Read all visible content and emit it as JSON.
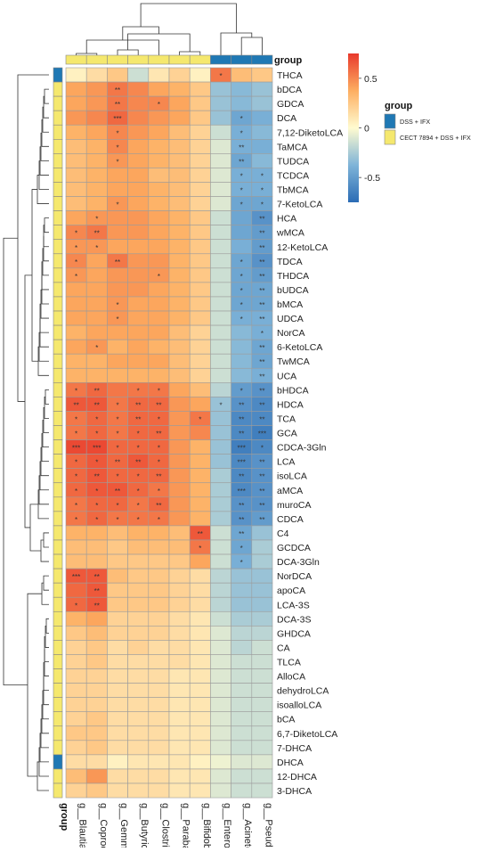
{
  "chart_data": {
    "type": "heatmap",
    "title": "",
    "columns": [
      "g__Blautia",
      "g__Coprococcus",
      "g__Gemmiger",
      "g__Butyricicoccus",
      "g__Clostridium",
      "g__Parabacteroides",
      "g__Bifidobacterium",
      "g__Enterococcus",
      "g__Acinetobacter",
      "g__Pseudomonas"
    ],
    "rows": [
      "THCA",
      "bDCA",
      "GDCA",
      "DCA",
      "7,12-DiketoLCA",
      "TaMCA",
      "TUDCA",
      "TCDCA",
      "TbMCA",
      "7-KetoLCA",
      "HCA",
      "wMCA",
      "12-KetoLCA",
      "TDCA",
      "THDCA",
      "bUDCA",
      "bMCA",
      "UDCA",
      "NorCA",
      "6-KetoLCA",
      "TwMCA",
      "UCA",
      "bHDCA",
      "HDCA",
      "TCA",
      "GCA",
      "CDCA-3Gln",
      "LCA",
      "isoLCA",
      "aMCA",
      "muroCA",
      "CDCA",
      "C4",
      "GCDCA",
      "DCA-3Gln",
      "NorDCA",
      "apoCA",
      "LCA-3S",
      "DCA-3S",
      "GHDCA",
      "CA",
      "TLCA",
      "AlloCA",
      "dehydroLCA",
      "isoalloLCA",
      "bCA",
      "6,7-DiketoLCA",
      "7-DHCA",
      "DHCA",
      "12-DHCA",
      "3-DHCA"
    ],
    "values": [
      [
        0.05,
        0.15,
        0.25,
        -0.15,
        0.1,
        0.2,
        0.05,
        0.55,
        0.3,
        0.25
      ],
      [
        0.4,
        0.45,
        0.55,
        0.5,
        0.4,
        0.35,
        0.25,
        -0.3,
        -0.35,
        -0.3
      ],
      [
        0.4,
        0.45,
        0.55,
        0.5,
        0.5,
        0.4,
        0.25,
        -0.3,
        -0.35,
        -0.3
      ],
      [
        0.45,
        0.5,
        0.6,
        0.5,
        0.45,
        0.4,
        0.25,
        -0.3,
        -0.45,
        -0.4
      ],
      [
        0.35,
        0.4,
        0.5,
        0.45,
        0.4,
        0.3,
        0.2,
        -0.15,
        -0.4,
        -0.35
      ],
      [
        0.3,
        0.35,
        0.5,
        0.4,
        0.35,
        0.3,
        0.2,
        -0.1,
        -0.4,
        -0.4
      ],
      [
        0.3,
        0.35,
        0.45,
        0.4,
        0.35,
        0.3,
        0.2,
        -0.1,
        -0.45,
        -0.35
      ],
      [
        0.3,
        0.35,
        0.4,
        0.4,
        0.3,
        0.3,
        0.2,
        -0.1,
        -0.4,
        -0.4
      ],
      [
        0.3,
        0.35,
        0.4,
        0.4,
        0.35,
        0.3,
        0.2,
        -0.1,
        -0.4,
        -0.4
      ],
      [
        0.3,
        0.35,
        0.45,
        0.4,
        0.35,
        0.3,
        0.2,
        -0.1,
        -0.45,
        -0.45
      ],
      [
        0.4,
        0.45,
        0.45,
        0.45,
        0.4,
        0.35,
        0.25,
        -0.15,
        -0.45,
        -0.55
      ],
      [
        0.5,
        0.55,
        0.45,
        0.45,
        0.4,
        0.35,
        0.25,
        -0.15,
        -0.45,
        -0.5
      ],
      [
        0.45,
        0.45,
        0.4,
        0.4,
        0.4,
        0.35,
        0.25,
        -0.15,
        -0.4,
        -0.5
      ],
      [
        0.5,
        0.4,
        0.55,
        0.45,
        0.45,
        0.35,
        0.25,
        -0.15,
        -0.45,
        -0.55
      ],
      [
        0.45,
        0.4,
        0.45,
        0.45,
        0.45,
        0.35,
        0.25,
        -0.15,
        -0.45,
        -0.5
      ],
      [
        0.4,
        0.4,
        0.45,
        0.45,
        0.4,
        0.35,
        0.25,
        -0.15,
        -0.45,
        -0.45
      ],
      [
        0.4,
        0.4,
        0.45,
        0.4,
        0.4,
        0.35,
        0.25,
        -0.15,
        -0.45,
        -0.45
      ],
      [
        0.4,
        0.4,
        0.45,
        0.4,
        0.4,
        0.35,
        0.25,
        -0.15,
        -0.4,
        -0.4
      ],
      [
        0.35,
        0.4,
        0.4,
        0.4,
        0.4,
        0.3,
        0.2,
        -0.15,
        -0.35,
        -0.4
      ],
      [
        0.4,
        0.45,
        0.35,
        0.4,
        0.35,
        0.3,
        0.2,
        -0.15,
        -0.35,
        -0.45
      ],
      [
        0.35,
        0.35,
        0.4,
        0.4,
        0.4,
        0.3,
        0.2,
        -0.15,
        -0.35,
        -0.45
      ],
      [
        0.35,
        0.35,
        0.35,
        0.35,
        0.35,
        0.3,
        0.2,
        -0.15,
        -0.35,
        -0.4
      ],
      [
        0.55,
        0.6,
        0.55,
        0.55,
        0.55,
        0.4,
        0.3,
        -0.2,
        -0.5,
        -0.55
      ],
      [
        0.65,
        0.65,
        0.55,
        0.6,
        0.6,
        0.45,
        0.4,
        -0.3,
        -0.55,
        -0.6
      ],
      [
        0.55,
        0.6,
        0.55,
        0.6,
        0.6,
        0.45,
        0.55,
        -0.3,
        -0.6,
        -0.6
      ],
      [
        0.55,
        0.6,
        0.55,
        0.6,
        0.6,
        0.45,
        0.5,
        -0.3,
        -0.6,
        -0.65
      ],
      [
        0.7,
        0.7,
        0.6,
        0.6,
        0.6,
        0.45,
        0.35,
        -0.3,
        -0.65,
        -0.6
      ],
      [
        0.6,
        0.65,
        0.6,
        0.65,
        0.6,
        0.45,
        0.35,
        -0.3,
        -0.6,
        -0.55
      ],
      [
        0.6,
        0.65,
        0.6,
        0.6,
        0.6,
        0.45,
        0.35,
        -0.25,
        -0.6,
        -0.55
      ],
      [
        0.6,
        0.65,
        0.65,
        0.6,
        0.55,
        0.45,
        0.35,
        -0.25,
        -0.6,
        -0.55
      ],
      [
        0.55,
        0.6,
        0.6,
        0.55,
        0.6,
        0.45,
        0.35,
        -0.25,
        -0.55,
        -0.55
      ],
      [
        0.55,
        0.6,
        0.55,
        0.55,
        0.55,
        0.45,
        0.35,
        -0.25,
        -0.55,
        -0.5
      ],
      [
        0.35,
        0.35,
        0.3,
        0.35,
        0.35,
        0.3,
        0.65,
        -0.15,
        -0.45,
        -0.3
      ],
      [
        0.3,
        0.3,
        0.25,
        0.3,
        0.3,
        0.3,
        0.55,
        -0.15,
        -0.45,
        -0.25
      ],
      [
        0.3,
        0.3,
        0.25,
        0.25,
        0.25,
        0.25,
        0.4,
        -0.15,
        -0.4,
        -0.25
      ],
      [
        0.65,
        0.65,
        0.3,
        0.25,
        0.25,
        0.2,
        0.15,
        -0.2,
        -0.3,
        -0.3
      ],
      [
        0.6,
        0.65,
        0.25,
        0.25,
        0.25,
        0.2,
        0.15,
        -0.2,
        -0.3,
        -0.3
      ],
      [
        0.6,
        0.65,
        0.25,
        0.25,
        0.25,
        0.2,
        0.15,
        -0.2,
        -0.3,
        -0.3
      ],
      [
        0.35,
        0.4,
        0.2,
        0.2,
        0.2,
        0.15,
        0.1,
        -0.15,
        -0.25,
        -0.25
      ],
      [
        0.25,
        0.3,
        0.2,
        0.2,
        0.2,
        0.15,
        0.1,
        -0.1,
        -0.2,
        -0.2
      ],
      [
        0.2,
        0.25,
        0.15,
        0.2,
        0.15,
        0.15,
        0.1,
        -0.1,
        -0.2,
        -0.15
      ],
      [
        0.2,
        0.25,
        0.15,
        0.15,
        0.15,
        0.15,
        0.1,
        -0.1,
        -0.15,
        -0.15
      ],
      [
        0.2,
        0.2,
        0.15,
        0.15,
        0.15,
        0.1,
        0.1,
        -0.1,
        -0.15,
        -0.15
      ],
      [
        0.2,
        0.2,
        0.15,
        0.15,
        0.15,
        0.1,
        0.1,
        -0.1,
        -0.15,
        -0.15
      ],
      [
        0.2,
        0.2,
        0.15,
        0.15,
        0.15,
        0.1,
        0.1,
        -0.1,
        -0.15,
        -0.15
      ],
      [
        0.2,
        0.25,
        0.15,
        0.15,
        0.15,
        0.1,
        0.1,
        -0.1,
        -0.15,
        -0.15
      ],
      [
        0.25,
        0.25,
        0.15,
        0.15,
        0.15,
        0.1,
        0.1,
        -0.1,
        -0.15,
        -0.15
      ],
      [
        0.2,
        0.25,
        0.15,
        0.15,
        0.15,
        0.1,
        0.1,
        -0.1,
        -0.15,
        -0.15
      ],
      [
        0.15,
        0.15,
        0.05,
        0.1,
        0.1,
        0.1,
        0.05,
        -0.05,
        -0.1,
        -0.1
      ],
      [
        0.3,
        0.45,
        0.15,
        0.15,
        0.15,
        0.1,
        0.1,
        -0.1,
        -0.15,
        -0.15
      ],
      [
        0.2,
        0.25,
        0.15,
        0.15,
        0.15,
        0.1,
        0.1,
        -0.1,
        -0.15,
        -0.15
      ]
    ],
    "significance": [
      [
        "",
        "",
        "",
        "",
        "",
        "",
        "",
        "*",
        "",
        ""
      ],
      [
        "",
        "",
        "**",
        "",
        "",
        "",
        "",
        "",
        "",
        ""
      ],
      [
        "",
        "",
        "**",
        "",
        "*",
        "",
        "",
        "",
        "",
        ""
      ],
      [
        "",
        "",
        "***",
        "",
        "",
        "",
        "",
        "",
        "*",
        ""
      ],
      [
        "",
        "",
        "*",
        "",
        "",
        "",
        "",
        "",
        "*",
        ""
      ],
      [
        "",
        "",
        "*",
        "",
        "",
        "",
        "",
        "",
        "**",
        ""
      ],
      [
        "",
        "",
        "*",
        "",
        "",
        "",
        "",
        "",
        "**",
        ""
      ],
      [
        "",
        "",
        "",
        "",
        "",
        "",
        "",
        "",
        "*",
        "*"
      ],
      [
        "",
        "",
        "",
        "",
        "",
        "",
        "",
        "",
        "*",
        "*"
      ],
      [
        "",
        "",
        "*",
        "",
        "",
        "",
        "",
        "",
        "*",
        "*"
      ],
      [
        "",
        "*",
        "",
        "",
        "",
        "",
        "",
        "",
        "",
        "**"
      ],
      [
        "*",
        "**",
        "",
        "",
        "",
        "",
        "",
        "",
        "",
        "**"
      ],
      [
        "*",
        "*",
        "",
        "",
        "",
        "",
        "",
        "",
        "",
        "**"
      ],
      [
        "*",
        "",
        "**",
        "",
        "",
        "",
        "",
        "",
        "*",
        "**"
      ],
      [
        "*",
        "",
        "",
        "",
        "*",
        "",
        "",
        "",
        "*",
        "**"
      ],
      [
        "",
        "",
        "",
        "",
        "",
        "",
        "",
        "",
        "*",
        "**"
      ],
      [
        "",
        "",
        "*",
        "",
        "",
        "",
        "",
        "",
        "*",
        "**"
      ],
      [
        "",
        "",
        "*",
        "",
        "",
        "",
        "",
        "",
        "*",
        "**"
      ],
      [
        "",
        "",
        "",
        "",
        "",
        "",
        "",
        "",
        "",
        "*"
      ],
      [
        "",
        "*",
        "",
        "",
        "",
        "",
        "",
        "",
        "",
        "**"
      ],
      [
        "",
        "",
        "",
        "",
        "",
        "",
        "",
        "",
        "",
        "**"
      ],
      [
        "",
        "",
        "",
        "",
        "",
        "",
        "",
        "",
        "",
        "**"
      ],
      [
        "*",
        "**",
        "",
        "*",
        "*",
        "",
        "",
        "",
        "*",
        "**"
      ],
      [
        "**",
        "**",
        "*",
        "**",
        "**",
        "",
        "",
        "*",
        "**",
        "**"
      ],
      [
        "*",
        "*",
        "*",
        "**",
        "*",
        "",
        "*",
        "",
        "**",
        "**"
      ],
      [
        "*",
        "*",
        "*",
        "*",
        "**",
        "",
        "",
        "",
        "**",
        "***"
      ],
      [
        "***",
        "***",
        "*",
        "*",
        "*",
        "",
        "",
        "",
        "***",
        "*"
      ],
      [
        "*",
        "*",
        "**",
        "**",
        "*",
        "",
        "",
        "",
        "***",
        "**"
      ],
      [
        "*",
        "**",
        "*",
        "*",
        "**",
        "",
        "",
        "",
        "**",
        "**"
      ],
      [
        "*",
        "*",
        "**",
        "*",
        "*",
        "",
        "",
        "",
        "***",
        "**"
      ],
      [
        "*",
        "*",
        "*",
        "*",
        "**",
        "",
        "",
        "",
        "**",
        "**"
      ],
      [
        "*",
        "*",
        "*",
        "*",
        "*",
        "",
        "",
        "",
        "**",
        "**"
      ],
      [
        "",
        "",
        "",
        "",
        "",
        "",
        "**",
        "",
        "**",
        ""
      ],
      [
        "",
        "",
        "",
        "",
        "",
        "",
        "*",
        "",
        "*",
        ""
      ],
      [
        "",
        "",
        "",
        "",
        "",
        "",
        "",
        "",
        "*",
        ""
      ],
      [
        "***",
        "**",
        "",
        "",
        "",
        "",
        "",
        "",
        "",
        ""
      ],
      [
        "",
        "**",
        "",
        "",
        "",
        "",
        "",
        "",
        "",
        ""
      ],
      [
        "*",
        "**",
        "",
        "",
        "",
        "",
        "",
        "",
        "",
        ""
      ],
      [
        "",
        "",
        "",
        "",
        "",
        "",
        "",
        "",
        "",
        ""
      ],
      [
        "",
        "",
        "",
        "",
        "",
        "",
        "",
        "",
        "",
        ""
      ],
      [
        "",
        "",
        "",
        "",
        "",
        "",
        "",
        "",
        "",
        ""
      ],
      [
        "",
        "",
        "",
        "",
        "",
        "",
        "",
        "",
        "",
        ""
      ],
      [
        "",
        "",
        "",
        "",
        "",
        "",
        "",
        "",
        "",
        ""
      ],
      [
        "",
        "",
        "",
        "",
        "",
        "",
        "",
        "",
        "",
        ""
      ],
      [
        "",
        "",
        "",
        "",
        "",
        "",
        "",
        "",
        "",
        ""
      ],
      [
        "",
        "",
        "",
        "",
        "",
        "",
        "",
        "",
        "",
        ""
      ],
      [
        "",
        "",
        "",
        "",
        "",
        "",
        "",
        "",
        "",
        ""
      ],
      [
        "",
        "",
        "",
        "",
        "",
        "",
        "",
        "",
        "",
        ""
      ],
      [
        "",
        "",
        "",
        "",
        "",
        "",
        "",
        "",
        "",
        ""
      ],
      [
        "",
        "",
        "",
        "",
        "",
        "",
        "",
        "",
        "",
        ""
      ],
      [
        "",
        "",
        "",
        "",
        "",
        "",
        "",
        "",
        "",
        ""
      ]
    ],
    "column_group": [
      "CECT 7894 + DSS + IFX",
      "CECT 7894 + DSS + IFX",
      "CECT 7894 + DSS + IFX",
      "CECT 7894 + DSS + IFX",
      "CECT 7894 + DSS + IFX",
      "CECT 7894 + DSS + IFX",
      "CECT 7894 + DSS + IFX",
      "DSS + IFX",
      "DSS + IFX",
      "DSS + IFX"
    ],
    "row_group": [
      "DSS + IFX",
      "CECT 7894 + DSS + IFX",
      "CECT 7894 + DSS + IFX",
      "CECT 7894 + DSS + IFX",
      "CECT 7894 + DSS + IFX",
      "CECT 7894 + DSS + IFX",
      "CECT 7894 + DSS + IFX",
      "CECT 7894 + DSS + IFX",
      "CECT 7894 + DSS + IFX",
      "CECT 7894 + DSS + IFX",
      "CECT 7894 + DSS + IFX",
      "CECT 7894 + DSS + IFX",
      "CECT 7894 + DSS + IFX",
      "CECT 7894 + DSS + IFX",
      "CECT 7894 + DSS + IFX",
      "CECT 7894 + DSS + IFX",
      "CECT 7894 + DSS + IFX",
      "CECT 7894 + DSS + IFX",
      "CECT 7894 + DSS + IFX",
      "CECT 7894 + DSS + IFX",
      "CECT 7894 + DSS + IFX",
      "CECT 7894 + DSS + IFX",
      "CECT 7894 + DSS + IFX",
      "CECT 7894 + DSS + IFX",
      "CECT 7894 + DSS + IFX",
      "CECT 7894 + DSS + IFX",
      "CECT 7894 + DSS + IFX",
      "CECT 7894 + DSS + IFX",
      "CECT 7894 + DSS + IFX",
      "CECT 7894 + DSS + IFX",
      "CECT 7894 + DSS + IFX",
      "CECT 7894 + DSS + IFX",
      "CECT 7894 + DSS + IFX",
      "CECT 7894 + DSS + IFX",
      "CECT 7894 + DSS + IFX",
      "CECT 7894 + DSS + IFX",
      "CECT 7894 + DSS + IFX",
      "CECT 7894 + DSS + IFX",
      "CECT 7894 + DSS + IFX",
      "CECT 7894 + DSS + IFX",
      "CECT 7894 + DSS + IFX",
      "CECT 7894 + DSS + IFX",
      "CECT 7894 + DSS + IFX",
      "CECT 7894 + DSS + IFX",
      "CECT 7894 + DSS + IFX",
      "CECT 7894 + DSS + IFX",
      "CECT 7894 + DSS + IFX",
      "CECT 7894 + DSS + IFX",
      "DSS + IFX",
      "CECT 7894 + DSS + IFX",
      "CECT 7894 + DSS + IFX"
    ],
    "annotation_label": "group",
    "legend": {
      "title": "group",
      "entries": [
        {
          "label": "DSS + IFX",
          "color": "#1f78b4"
        },
        {
          "label": "CECT 7894 + DSS + IFX",
          "color": "#f5e86e"
        }
      ]
    },
    "colorbar": {
      "ticks": [
        0.5,
        0,
        -0.5
      ],
      "tick_labels": [
        "0.5",
        "0",
        "-0.5"
      ],
      "range": [
        -0.75,
        0.75
      ],
      "colors": [
        "#2b6cb5",
        "#7fb4d8",
        "#fffbd0",
        "#fdae61",
        "#e8392c"
      ]
    },
    "grid": true,
    "column_dendrogram": true,
    "row_dendrogram": true
  }
}
